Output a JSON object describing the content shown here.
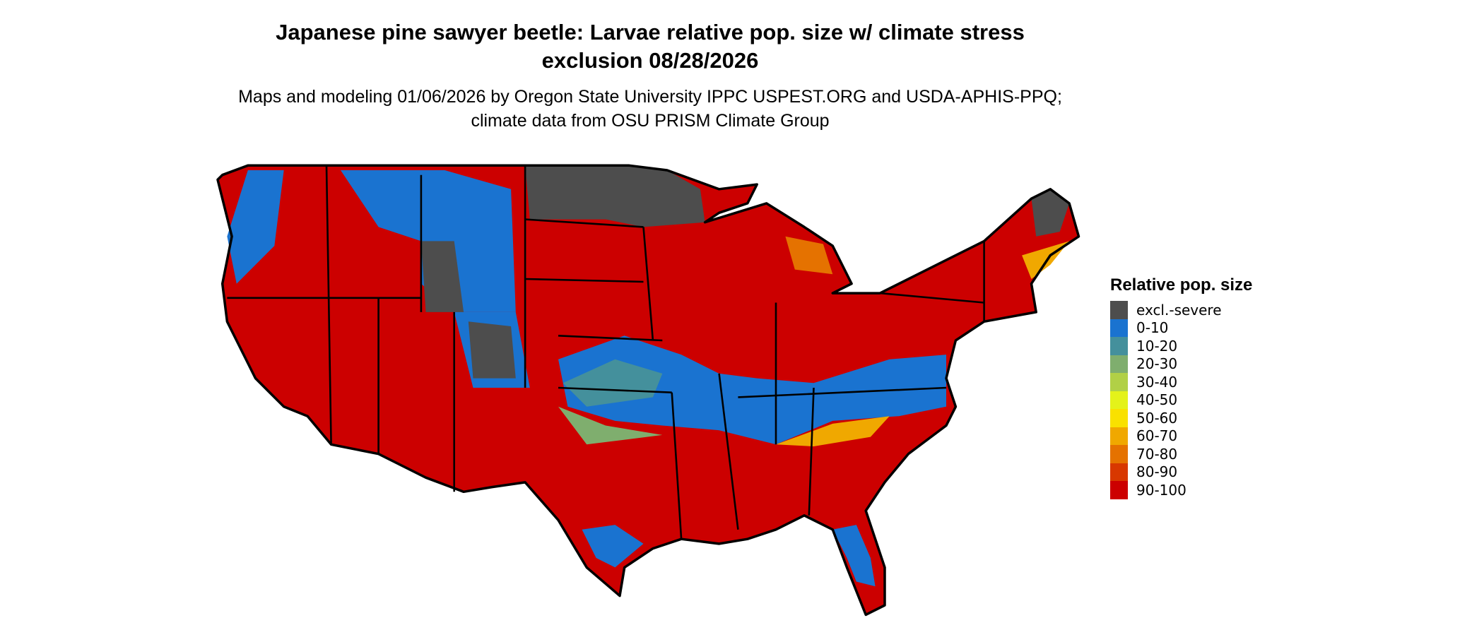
{
  "title": "Japanese pine sawyer beetle: Larvae relative pop. size w/ climate stress exclusion 08/28/2026",
  "subtitle": "Maps and modeling 01/06/2026 by Oregon State University IPPC USPEST.ORG and USDA-APHIS-PPQ; climate data from OSU PRISM Climate Group",
  "legend": {
    "title": "Relative pop. size",
    "items": [
      {
        "label": "excl.-severe",
        "color": "#4d4d4d"
      },
      {
        "label": "0-10",
        "color": "#1a73d0"
      },
      {
        "label": "10-20",
        "color": "#44909c"
      },
      {
        "label": "20-30",
        "color": "#7fae6e"
      },
      {
        "label": "30-40",
        "color": "#b1d046"
      },
      {
        "label": "40-50",
        "color": "#e4f21a"
      },
      {
        "label": "50-60",
        "color": "#f9e100"
      },
      {
        "label": "60-70",
        "color": "#f0a800"
      },
      {
        "label": "70-80",
        "color": "#e57200"
      },
      {
        "label": "80-90",
        "color": "#d83800"
      },
      {
        "label": "90-100",
        "color": "#cc0000"
      }
    ]
  }
}
